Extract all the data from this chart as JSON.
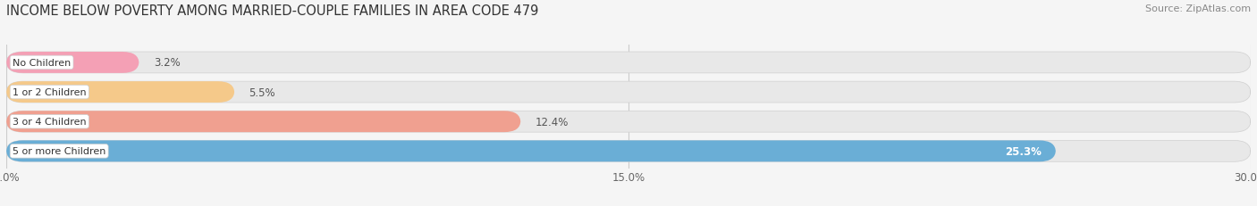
{
  "title": "INCOME BELOW POVERTY AMONG MARRIED-COUPLE FAMILIES IN AREA CODE 479",
  "source": "Source: ZipAtlas.com",
  "categories": [
    "No Children",
    "1 or 2 Children",
    "3 or 4 Children",
    "5 or more Children"
  ],
  "values": [
    3.2,
    5.5,
    12.4,
    25.3
  ],
  "bar_colors": [
    "#f4a0b5",
    "#f5c98a",
    "#f0a090",
    "#6aaed6"
  ],
  "value_inside": [
    false,
    false,
    false,
    true
  ],
  "xlim": [
    0,
    30.0
  ],
  "xticks": [
    0.0,
    15.0,
    30.0
  ],
  "xtick_labels": [
    "0.0%",
    "15.0%",
    "30.0%"
  ],
  "bg_color": "#f5f5f5",
  "bar_bg_color": "#e8e8e8",
  "title_fontsize": 10.5,
  "source_fontsize": 8,
  "bar_height": 0.72,
  "figsize": [
    14.06,
    2.32
  ]
}
